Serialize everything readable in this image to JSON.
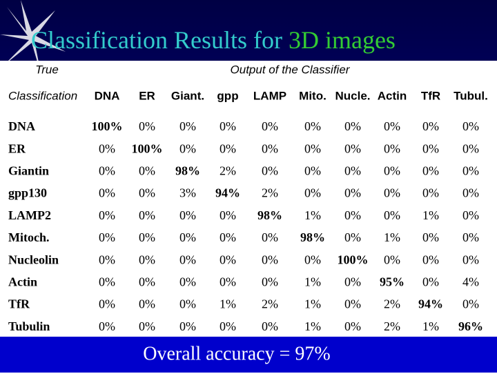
{
  "header": {
    "title_main": "Classification Results for ",
    "title_accent": "3D images"
  },
  "table": {
    "corner_top": "True",
    "column_group": "Output of the Classifier",
    "corner": "Classification",
    "columns": [
      "DNA",
      "ER",
      "Giant.",
      "gpp",
      "LAMP",
      "Mito.",
      "Nucle.",
      "Actin",
      "TfR",
      "Tubul."
    ],
    "rows": [
      {
        "label": "DNA",
        "cells": [
          "100%",
          "0%",
          "0%",
          "0%",
          "0%",
          "0%",
          "0%",
          "0%",
          "0%",
          "0%"
        ]
      },
      {
        "label": "ER",
        "cells": [
          "0%",
          "100%",
          "0%",
          "0%",
          "0%",
          "0%",
          "0%",
          "0%",
          "0%",
          "0%"
        ]
      },
      {
        "label": "Giantin",
        "cells": [
          "0%",
          "0%",
          "98%",
          "2%",
          "0%",
          "0%",
          "0%",
          "0%",
          "0%",
          "0%"
        ]
      },
      {
        "label": "gpp130",
        "cells": [
          "0%",
          "0%",
          "3%",
          "94%",
          "2%",
          "0%",
          "0%",
          "0%",
          "0%",
          "0%"
        ]
      },
      {
        "label": "LAMP2",
        "cells": [
          "0%",
          "0%",
          "0%",
          "0%",
          "98%",
          "1%",
          "0%",
          "0%",
          "1%",
          "0%"
        ]
      },
      {
        "label": "Mitoch.",
        "cells": [
          "0%",
          "0%",
          "0%",
          "0%",
          "0%",
          "98%",
          "0%",
          "1%",
          "0%",
          "0%"
        ]
      },
      {
        "label": "Nucleolin",
        "cells": [
          "0%",
          "0%",
          "0%",
          "0%",
          "0%",
          "0%",
          "100%",
          "0%",
          "0%",
          "0%"
        ]
      },
      {
        "label": "Actin",
        "cells": [
          "0%",
          "0%",
          "0%",
          "0%",
          "0%",
          "1%",
          "0%",
          "95%",
          "0%",
          "4%"
        ]
      },
      {
        "label": "TfR",
        "cells": [
          "0%",
          "0%",
          "0%",
          "1%",
          "2%",
          "1%",
          "0%",
          "2%",
          "94%",
          "0%"
        ]
      },
      {
        "label": "Tubulin",
        "cells": [
          "0%",
          "0%",
          "0%",
          "0%",
          "0%",
          "1%",
          "0%",
          "2%",
          "1%",
          "96%"
        ]
      }
    ]
  },
  "footer": {
    "text": "Overall accuracy = 97%"
  }
}
